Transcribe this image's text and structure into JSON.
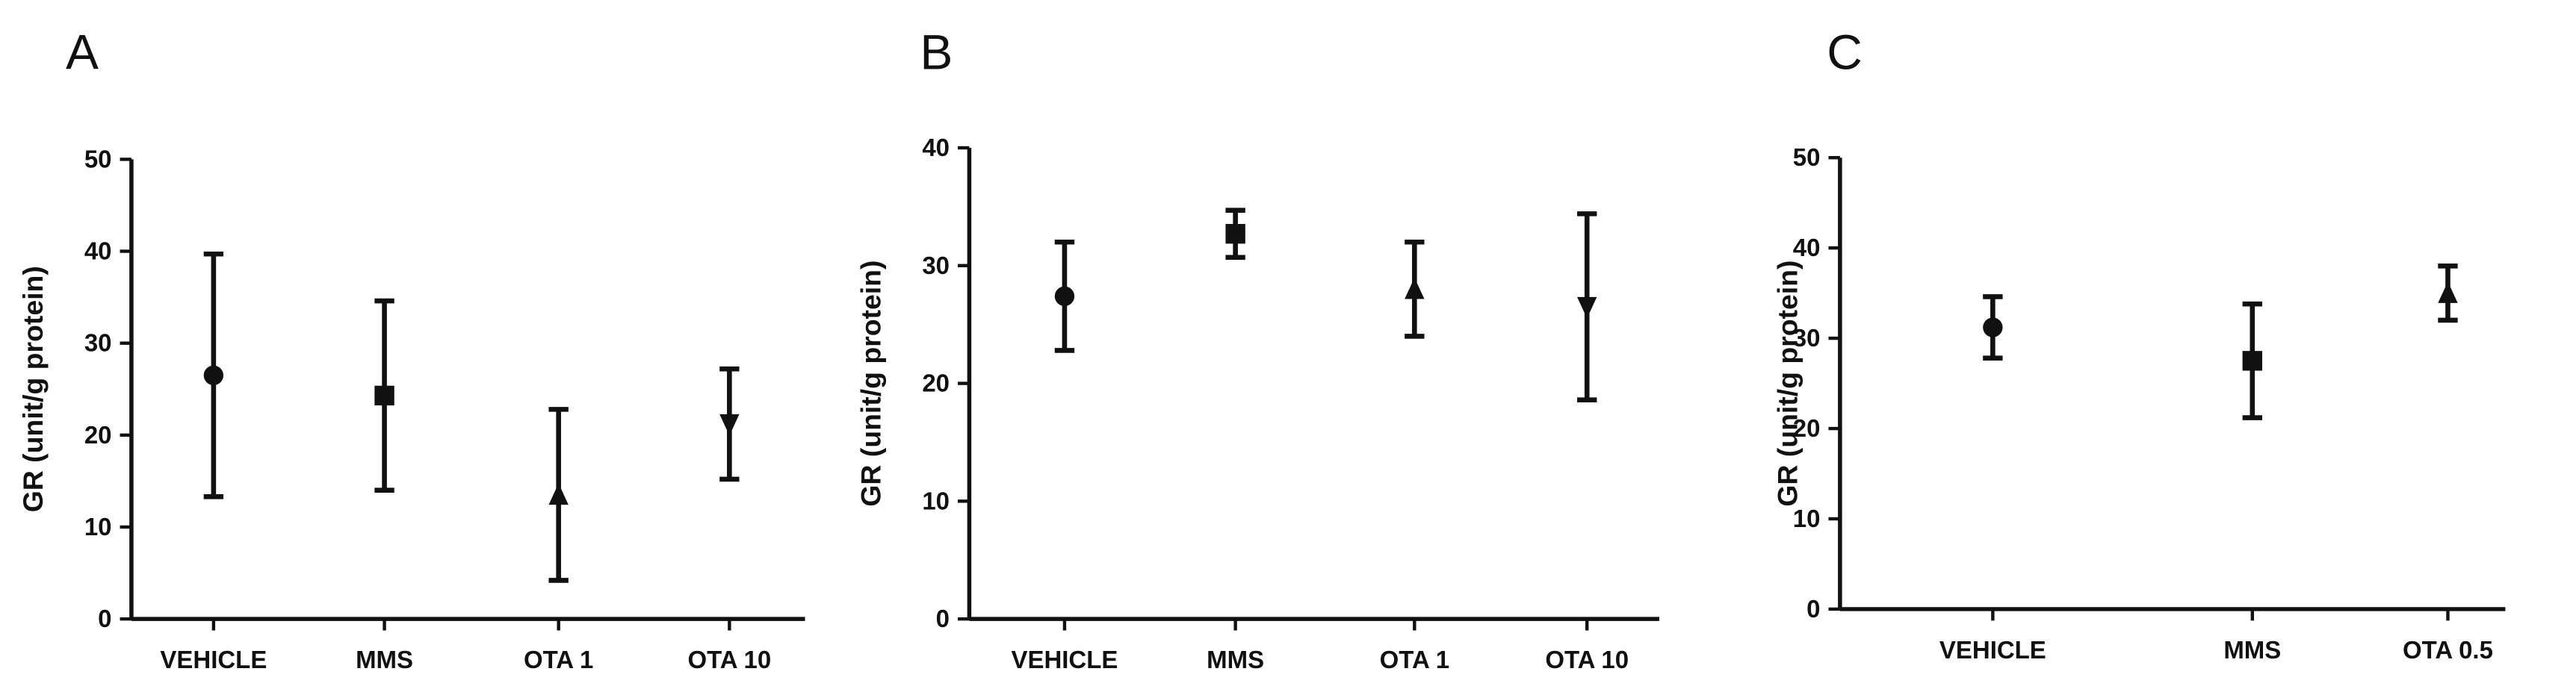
{
  "chart_data": [
    {
      "type": "errorbar",
      "panel_label": "A",
      "ylabel": "GR (unit/g protein)",
      "categories": [
        "VEHICLE",
        "MMS",
        "OTA 1",
        "OTA 10"
      ],
      "values": [
        26.5,
        24.3,
        13.5,
        21.2
      ],
      "errors": [
        13.2,
        10.3,
        9.3,
        6.0
      ],
      "markers": [
        "circle",
        "square",
        "triangle-up",
        "triangle-down"
      ],
      "color": "#111111",
      "ylim": [
        0,
        50
      ],
      "yticks": [
        0,
        10,
        20,
        30,
        40,
        50
      ]
    },
    {
      "type": "errorbar",
      "panel_label": "B",
      "ylabel": "GR (unit/g protein)",
      "categories": [
        "VEHICLE",
        "MMS",
        "OTA 1",
        "OTA 10"
      ],
      "values": [
        27.4,
        32.7,
        28.0,
        26.5
      ],
      "errors": [
        4.6,
        2.0,
        4.0,
        7.9
      ],
      "markers": [
        "circle",
        "square",
        "triangle-up",
        "triangle-down"
      ],
      "color": "#111111",
      "ylim": [
        0,
        40
      ],
      "yticks": [
        0,
        10,
        20,
        30,
        40
      ]
    },
    {
      "type": "errorbar",
      "panel_label": "C",
      "ylabel": "GR (unit/g protein)",
      "categories": [
        "VEHICLE",
        "MMS",
        "OTA 0.5"
      ],
      "values": [
        31.2,
        27.5,
        35.0
      ],
      "errors": [
        3.4,
        6.3,
        3.0
      ],
      "markers": [
        "circle",
        "square",
        "triangle-up"
      ],
      "color": "#111111",
      "ylim": [
        0,
        50
      ],
      "yticks": [
        0,
        10,
        20,
        30,
        40,
        50
      ]
    }
  ]
}
